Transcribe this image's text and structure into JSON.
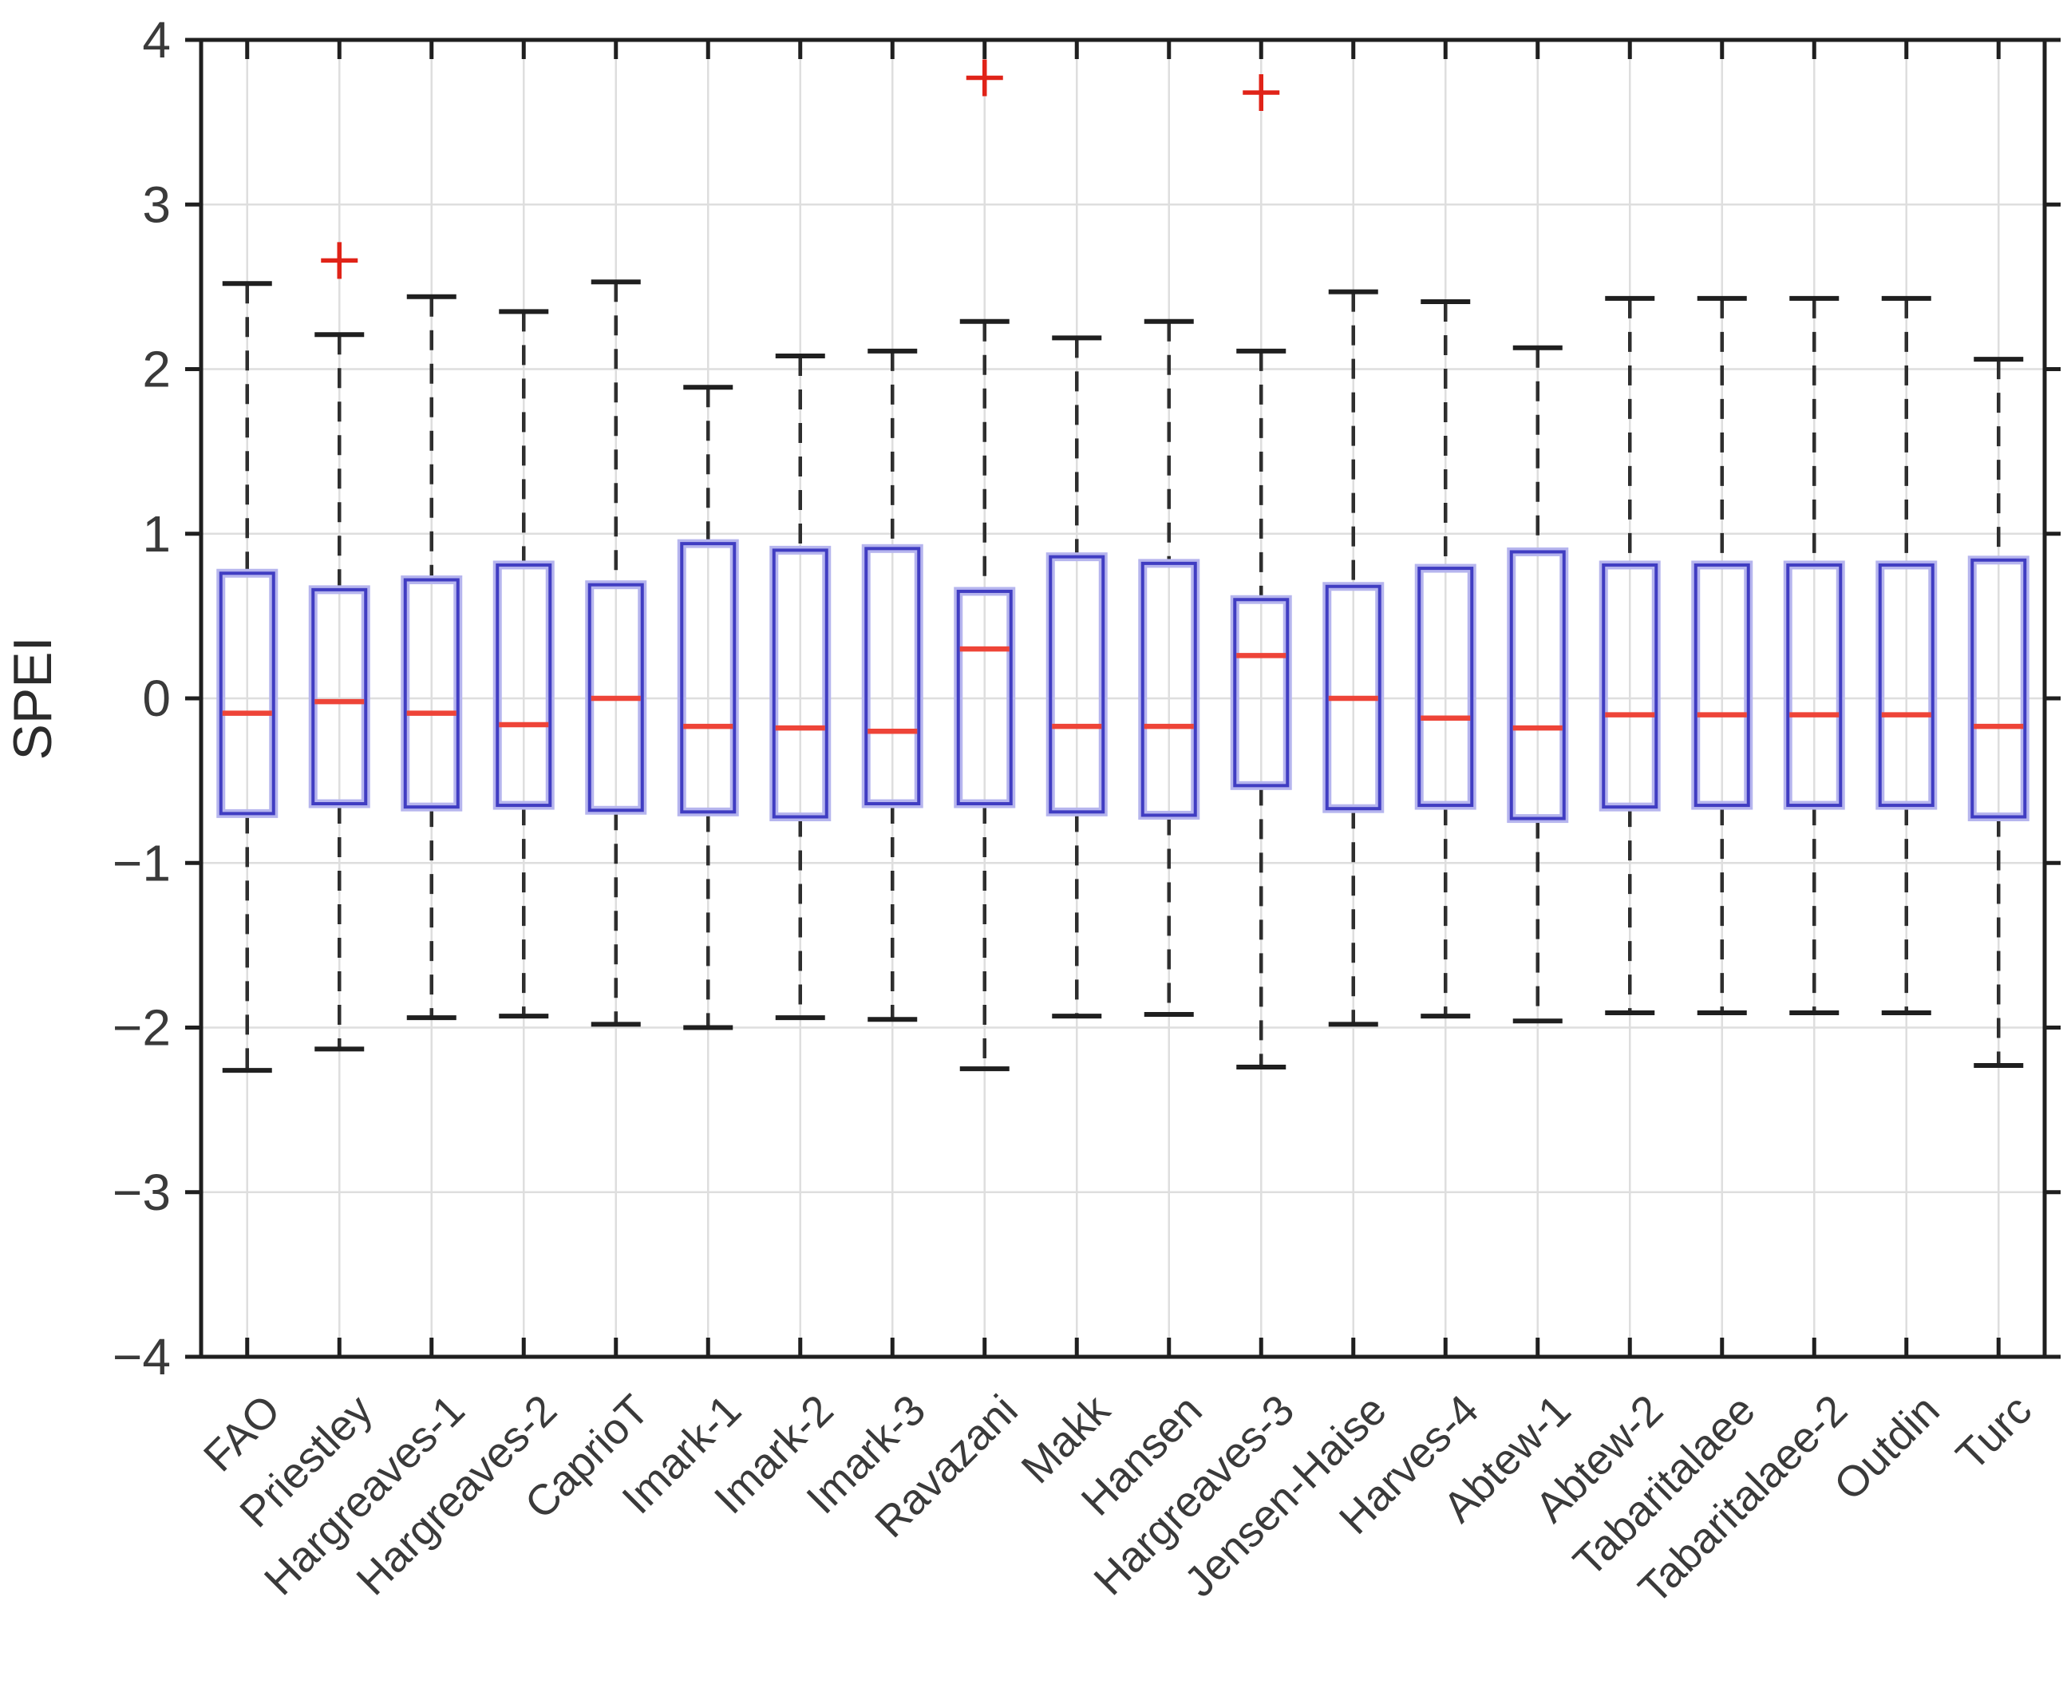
{
  "chart_data": {
    "type": "boxplot",
    "title": "",
    "xlabel": "",
    "ylabel": "SPEI",
    "ylim": [
      -4,
      4
    ],
    "yticks": [
      -4,
      -3,
      -2,
      -1,
      0,
      1,
      2,
      3,
      4
    ],
    "ytick_labels": [
      "−4",
      "−3",
      "−2",
      "−1",
      "0",
      "1",
      "2",
      "3",
      "4"
    ],
    "grid": true,
    "legend": "none",
    "categories": [
      "FAO",
      "Priestley",
      "Hargreaves-1",
      "Hargreaves-2",
      "CaprioT",
      "Imark-1",
      "Imark-2",
      "Imark-3",
      "Ravazani",
      "Makk",
      "Hansen",
      "Hargreaves-3",
      "Jensen-Haise",
      "Harves-4",
      "Abtew-1",
      "Abtew-2",
      "Tabaritalaee",
      "Tabaritalaee-2",
      "Outdin",
      "Turc"
    ],
    "series": [
      {
        "name": "FAO",
        "whisker_low": -2.26,
        "q1": -0.7,
        "median": -0.09,
        "q3": 0.76,
        "whisker_high": 2.52,
        "outliers": []
      },
      {
        "name": "Priestley",
        "whisker_low": -2.13,
        "q1": -0.64,
        "median": -0.02,
        "q3": 0.66,
        "whisker_high": 2.21,
        "outliers": [
          2.66
        ]
      },
      {
        "name": "Hargreaves-1",
        "whisker_low": -1.94,
        "q1": -0.66,
        "median": -0.09,
        "q3": 0.72,
        "whisker_high": 2.44,
        "outliers": []
      },
      {
        "name": "Hargreaves-2",
        "whisker_low": -1.93,
        "q1": -0.65,
        "median": -0.16,
        "q3": 0.81,
        "whisker_high": 2.35,
        "outliers": []
      },
      {
        "name": "CaprioT",
        "whisker_low": -1.98,
        "q1": -0.68,
        "median": 0.0,
        "q3": 0.69,
        "whisker_high": 2.53,
        "outliers": []
      },
      {
        "name": "Imark-1",
        "whisker_low": -2.0,
        "q1": -0.69,
        "median": -0.17,
        "q3": 0.94,
        "whisker_high": 1.89,
        "outliers": []
      },
      {
        "name": "Imark-2",
        "whisker_low": -1.94,
        "q1": -0.72,
        "median": -0.18,
        "q3": 0.9,
        "whisker_high": 2.08,
        "outliers": []
      },
      {
        "name": "Imark-3",
        "whisker_low": -1.95,
        "q1": -0.64,
        "median": -0.2,
        "q3": 0.91,
        "whisker_high": 2.11,
        "outliers": []
      },
      {
        "name": "Ravazani",
        "whisker_low": -2.25,
        "q1": -0.64,
        "median": 0.3,
        "q3": 0.65,
        "whisker_high": 2.29,
        "outliers": [
          3.77
        ]
      },
      {
        "name": "Makk",
        "whisker_low": -1.93,
        "q1": -0.69,
        "median": -0.17,
        "q3": 0.86,
        "whisker_high": 2.19,
        "outliers": []
      },
      {
        "name": "Hansen",
        "whisker_low": -1.92,
        "q1": -0.71,
        "median": -0.17,
        "q3": 0.82,
        "whisker_high": 2.29,
        "outliers": []
      },
      {
        "name": "Hargreaves-3",
        "whisker_low": -2.24,
        "q1": -0.53,
        "median": 0.26,
        "q3": 0.6,
        "whisker_high": 2.11,
        "outliers": [
          3.68
        ]
      },
      {
        "name": "Jensen-Haise",
        "whisker_low": -1.98,
        "q1": -0.67,
        "median": 0.0,
        "q3": 0.68,
        "whisker_high": 2.47,
        "outliers": []
      },
      {
        "name": "Harves-4",
        "whisker_low": -1.93,
        "q1": -0.65,
        "median": -0.12,
        "q3": 0.79,
        "whisker_high": 2.41,
        "outliers": []
      },
      {
        "name": "Abtew-1",
        "whisker_low": -1.96,
        "q1": -0.73,
        "median": -0.18,
        "q3": 0.89,
        "whisker_high": 2.13,
        "outliers": []
      },
      {
        "name": "Abtew-2",
        "whisker_low": -1.91,
        "q1": -0.66,
        "median": -0.1,
        "q3": 0.81,
        "whisker_high": 2.43,
        "outliers": []
      },
      {
        "name": "Tabaritalaee",
        "whisker_low": -1.91,
        "q1": -0.65,
        "median": -0.1,
        "q3": 0.81,
        "whisker_high": 2.43,
        "outliers": []
      },
      {
        "name": "Tabaritalaee-2",
        "whisker_low": -1.91,
        "q1": -0.65,
        "median": -0.1,
        "q3": 0.81,
        "whisker_high": 2.43,
        "outliers": []
      },
      {
        "name": "Outdin",
        "whisker_low": -1.91,
        "q1": -0.65,
        "median": -0.1,
        "q3": 0.81,
        "whisker_high": 2.43,
        "outliers": []
      },
      {
        "name": "Turc",
        "whisker_low": -2.23,
        "q1": -0.72,
        "median": -0.17,
        "q3": 0.84,
        "whisker_high": 2.06,
        "outliers": []
      }
    ],
    "colors": {
      "box": "#403dc2",
      "box_halo": "#b6b5ee",
      "median": "#ee4438",
      "whisker": "#2e2e2e",
      "cap": "#1f1f1f",
      "outlier": "#e02318",
      "grid": "#dedede",
      "axis": "#1f1f1f",
      "tick_label": "#3a3a3a"
    },
    "layout": {
      "plot_left": 252,
      "plot_right": 2562,
      "plot_top": 50,
      "plot_bottom": 1700,
      "x_label_rotation_deg": 45
    }
  }
}
